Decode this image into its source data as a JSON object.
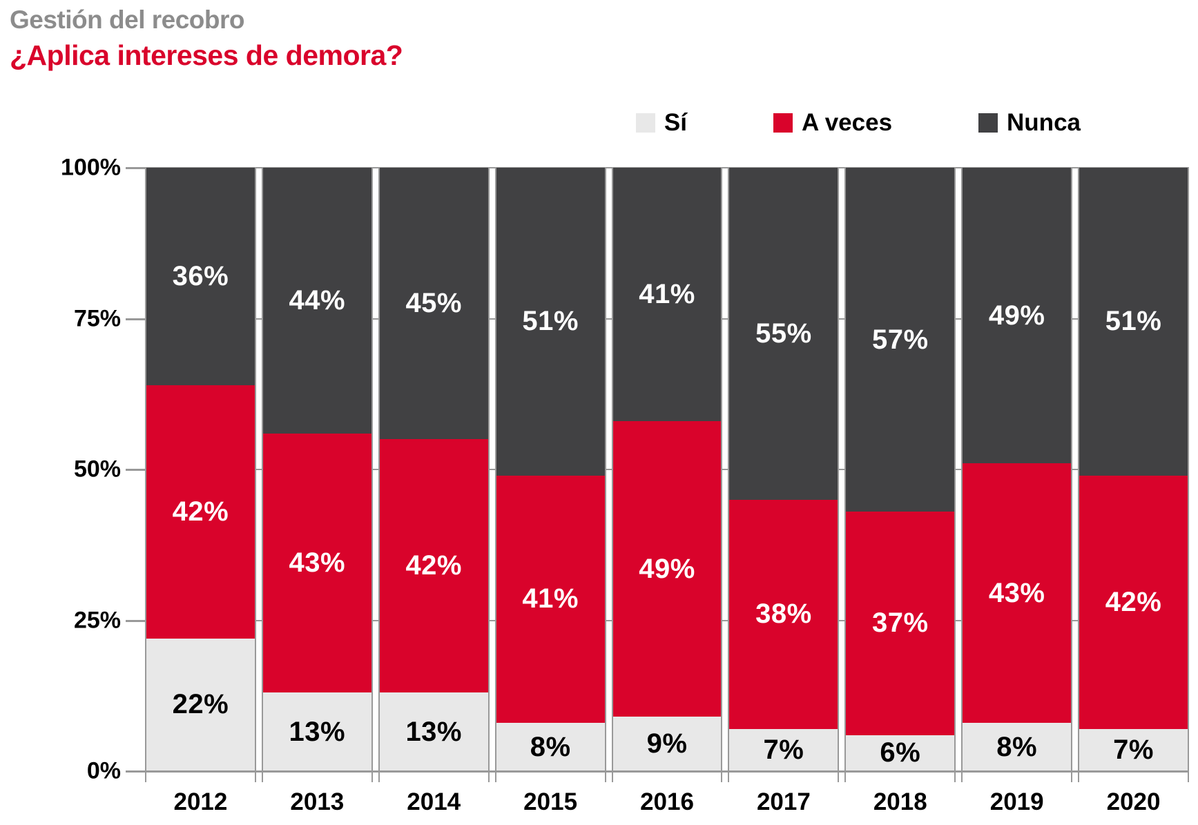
{
  "header": {
    "subtitle": "Gestión del recobro",
    "title": "¿Aplica intereses de demora?"
  },
  "legend": {
    "items": [
      {
        "label": "Sí",
        "color": "#E8E8E8"
      },
      {
        "label": "A veces",
        "color": "#D9032B"
      },
      {
        "label": "Nunca",
        "color": "#414143"
      }
    ]
  },
  "chart_data": {
    "type": "bar",
    "stacked": true,
    "orientation": "vertical",
    "title": "¿Aplica intereses de demora?",
    "categories": [
      "2012",
      "2013",
      "2014",
      "2015",
      "2016",
      "2017",
      "2018",
      "2019",
      "2020"
    ],
    "series": [
      {
        "name": "Sí",
        "color": "#E8E8E8",
        "label_color": "#000000",
        "values": [
          22,
          13,
          13,
          8,
          9,
          7,
          6,
          8,
          7
        ]
      },
      {
        "name": "A veces",
        "color": "#D9032B",
        "label_color": "#FFFFFF",
        "values": [
          42,
          43,
          42,
          41,
          49,
          38,
          37,
          43,
          42
        ]
      },
      {
        "name": "Nunca",
        "color": "#414143",
        "label_color": "#FFFFFF",
        "values": [
          36,
          44,
          45,
          51,
          41,
          55,
          57,
          49,
          51
        ]
      }
    ],
    "value_suffix": "%",
    "y_ticks": [
      "100%",
      "75%",
      "50%",
      "25%",
      "0%"
    ],
    "ylim": [
      0,
      100
    ],
    "grid": true,
    "legend_position": "top-right"
  },
  "colors": {
    "title": "#D9032B",
    "subtitle": "#8C8C8C",
    "grid": "#999999",
    "background": "#FFFFFF",
    "text": "#000000"
  }
}
